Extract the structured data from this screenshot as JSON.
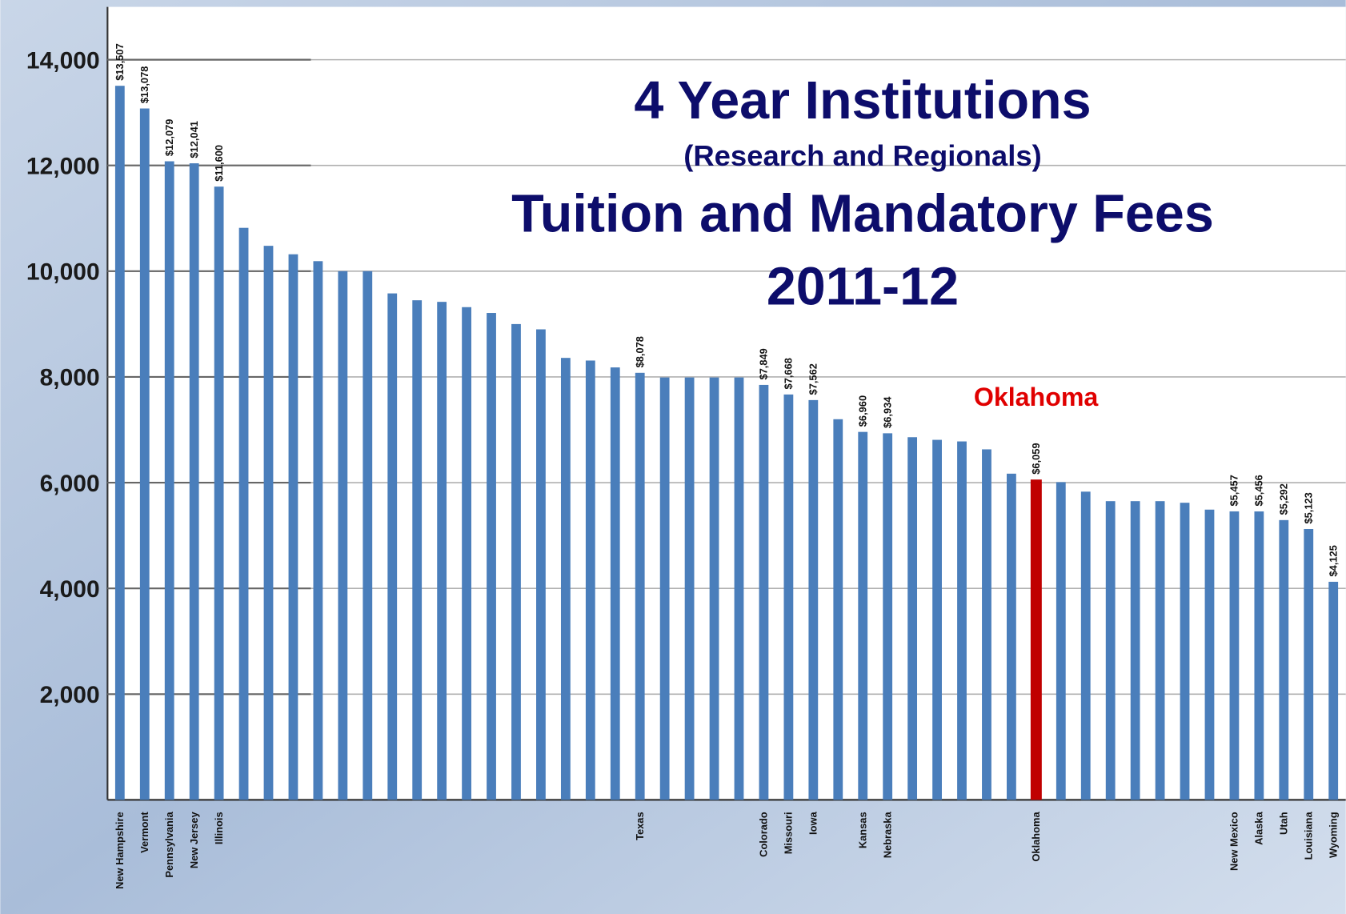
{
  "chart_data": {
    "type": "bar",
    "title": "4 Year Institutions",
    "subtitle": "(Research and Regionals)",
    "title2": "Tuition and Mandatory Fees",
    "title3": "2011-12",
    "annotation": "Oklahoma",
    "annotation_color": "#e00000",
    "categories": [
      "New Hampshire",
      "Vermont",
      "Pennsylvania",
      "New Jersey",
      "Illinois",
      null,
      null,
      null,
      null,
      null,
      null,
      null,
      null,
      null,
      null,
      null,
      null,
      null,
      null,
      null,
      null,
      "Texas",
      null,
      null,
      null,
      null,
      "Colorado",
      "Missouri",
      "Iowa",
      null,
      "Kansas",
      "Nebraska",
      null,
      null,
      null,
      null,
      null,
      "Oklahoma",
      null,
      null,
      null,
      null,
      null,
      null,
      null,
      "New Mexico",
      "Alaska",
      "Utah",
      "Louisiana",
      "Wyoming"
    ],
    "values": [
      13507,
      13078,
      12079,
      12041,
      11600,
      10820,
      10480,
      10320,
      10190,
      10000,
      10000,
      9580,
      9450,
      9420,
      9320,
      9210,
      9000,
      8900,
      8360,
      8310,
      8180,
      8078,
      7990,
      7990,
      7990,
      7990,
      7849,
      7668,
      7562,
      7200,
      6960,
      6934,
      6860,
      6810,
      6780,
      6630,
      6170,
      6059,
      6010,
      5830,
      5650,
      5650,
      5650,
      5620,
      5490,
      5457,
      5456,
      5292,
      5123,
      4125
    ],
    "value_labels": [
      "$13,507",
      "$13,078",
      "$12,079",
      "$12,041",
      "$11,600",
      null,
      null,
      null,
      null,
      null,
      null,
      null,
      null,
      null,
      null,
      null,
      null,
      null,
      null,
      null,
      null,
      "$8,078",
      null,
      null,
      null,
      null,
      "$7,849",
      "$7,668",
      "$7,562",
      null,
      "$6,960",
      "$6,934",
      null,
      null,
      null,
      null,
      null,
      "$6,059",
      null,
      null,
      null,
      null,
      null,
      null,
      null,
      "$5,457",
      "$5,456",
      "$5,292",
      "$5,123",
      "$4,125"
    ],
    "colors": [
      "#4a7ebb",
      "#4a7ebb",
      "#4a7ebb",
      "#4a7ebb",
      "#4a7ebb",
      "#4a7ebb",
      "#4a7ebb",
      "#4a7ebb",
      "#4a7ebb",
      "#4a7ebb",
      "#4a7ebb",
      "#4a7ebb",
      "#4a7ebb",
      "#4a7ebb",
      "#4a7ebb",
      "#4a7ebb",
      "#4a7ebb",
      "#4a7ebb",
      "#4a7ebb",
      "#4a7ebb",
      "#4a7ebb",
      "#4a7ebb",
      "#4a7ebb",
      "#4a7ebb",
      "#4a7ebb",
      "#4a7ebb",
      "#4a7ebb",
      "#4a7ebb",
      "#4a7ebb",
      "#4a7ebb",
      "#4a7ebb",
      "#4a7ebb",
      "#4a7ebb",
      "#4a7ebb",
      "#4a7ebb",
      "#4a7ebb",
      "#4a7ebb",
      "#c00000",
      "#4a7ebb",
      "#4a7ebb",
      "#4a7ebb",
      "#4a7ebb",
      "#4a7ebb",
      "#4a7ebb",
      "#4a7ebb",
      "#4a7ebb",
      "#4a7ebb",
      "#4a7ebb",
      "#4a7ebb",
      "#4a7ebb"
    ],
    "ylim": [
      0,
      15000
    ],
    "yticks": [
      {
        "value": 2000,
        "label": "2,000"
      },
      {
        "value": 4000,
        "label": "4,000"
      },
      {
        "value": 6000,
        "label": "6,000"
      },
      {
        "value": 8000,
        "label": "8,000"
      },
      {
        "value": 10000,
        "label": "10,000"
      },
      {
        "value": 12000,
        "label": "12,000"
      },
      {
        "value": 14000,
        "label": "14,000"
      }
    ],
    "grid": true
  }
}
